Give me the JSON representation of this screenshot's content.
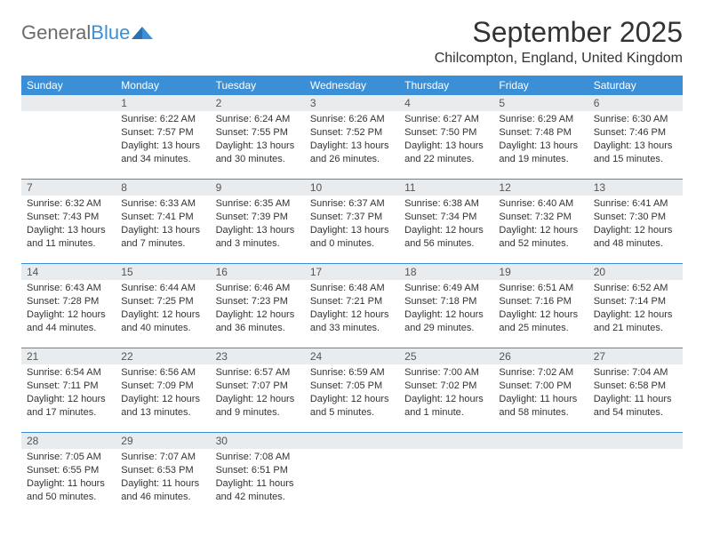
{
  "logo": {
    "gray": "General",
    "blue": "Blue"
  },
  "header": {
    "title": "September 2025",
    "location": "Chilcompton, England, United Kingdom"
  },
  "colors": {
    "brand_blue": "#3b8fd6",
    "header_gray": "#e8ecef",
    "text": "#333333",
    "logo_gray": "#6b6b6b"
  },
  "calendar": {
    "day_labels": [
      "Sunday",
      "Monday",
      "Tuesday",
      "Wednesday",
      "Thursday",
      "Friday",
      "Saturday"
    ],
    "weeks": [
      {
        "nums": [
          "",
          "1",
          "2",
          "3",
          "4",
          "5",
          "6"
        ],
        "cells": [
          null,
          {
            "sunrise": "Sunrise: 6:22 AM",
            "sunset": "Sunset: 7:57 PM",
            "daylight": "Daylight: 13 hours and 34 minutes."
          },
          {
            "sunrise": "Sunrise: 6:24 AM",
            "sunset": "Sunset: 7:55 PM",
            "daylight": "Daylight: 13 hours and 30 minutes."
          },
          {
            "sunrise": "Sunrise: 6:26 AM",
            "sunset": "Sunset: 7:52 PM",
            "daylight": "Daylight: 13 hours and 26 minutes."
          },
          {
            "sunrise": "Sunrise: 6:27 AM",
            "sunset": "Sunset: 7:50 PM",
            "daylight": "Daylight: 13 hours and 22 minutes."
          },
          {
            "sunrise": "Sunrise: 6:29 AM",
            "sunset": "Sunset: 7:48 PM",
            "daylight": "Daylight: 13 hours and 19 minutes."
          },
          {
            "sunrise": "Sunrise: 6:30 AM",
            "sunset": "Sunset: 7:46 PM",
            "daylight": "Daylight: 13 hours and 15 minutes."
          }
        ]
      },
      {
        "nums": [
          "7",
          "8",
          "9",
          "10",
          "11",
          "12",
          "13"
        ],
        "cells": [
          {
            "sunrise": "Sunrise: 6:32 AM",
            "sunset": "Sunset: 7:43 PM",
            "daylight": "Daylight: 13 hours and 11 minutes."
          },
          {
            "sunrise": "Sunrise: 6:33 AM",
            "sunset": "Sunset: 7:41 PM",
            "daylight": "Daylight: 13 hours and 7 minutes."
          },
          {
            "sunrise": "Sunrise: 6:35 AM",
            "sunset": "Sunset: 7:39 PM",
            "daylight": "Daylight: 13 hours and 3 minutes."
          },
          {
            "sunrise": "Sunrise: 6:37 AM",
            "sunset": "Sunset: 7:37 PM",
            "daylight": "Daylight: 13 hours and 0 minutes."
          },
          {
            "sunrise": "Sunrise: 6:38 AM",
            "sunset": "Sunset: 7:34 PM",
            "daylight": "Daylight: 12 hours and 56 minutes."
          },
          {
            "sunrise": "Sunrise: 6:40 AM",
            "sunset": "Sunset: 7:32 PM",
            "daylight": "Daylight: 12 hours and 52 minutes."
          },
          {
            "sunrise": "Sunrise: 6:41 AM",
            "sunset": "Sunset: 7:30 PM",
            "daylight": "Daylight: 12 hours and 48 minutes."
          }
        ]
      },
      {
        "nums": [
          "14",
          "15",
          "16",
          "17",
          "18",
          "19",
          "20"
        ],
        "cells": [
          {
            "sunrise": "Sunrise: 6:43 AM",
            "sunset": "Sunset: 7:28 PM",
            "daylight": "Daylight: 12 hours and 44 minutes."
          },
          {
            "sunrise": "Sunrise: 6:44 AM",
            "sunset": "Sunset: 7:25 PM",
            "daylight": "Daylight: 12 hours and 40 minutes."
          },
          {
            "sunrise": "Sunrise: 6:46 AM",
            "sunset": "Sunset: 7:23 PM",
            "daylight": "Daylight: 12 hours and 36 minutes."
          },
          {
            "sunrise": "Sunrise: 6:48 AM",
            "sunset": "Sunset: 7:21 PM",
            "daylight": "Daylight: 12 hours and 33 minutes."
          },
          {
            "sunrise": "Sunrise: 6:49 AM",
            "sunset": "Sunset: 7:18 PM",
            "daylight": "Daylight: 12 hours and 29 minutes."
          },
          {
            "sunrise": "Sunrise: 6:51 AM",
            "sunset": "Sunset: 7:16 PM",
            "daylight": "Daylight: 12 hours and 25 minutes."
          },
          {
            "sunrise": "Sunrise: 6:52 AM",
            "sunset": "Sunset: 7:14 PM",
            "daylight": "Daylight: 12 hours and 21 minutes."
          }
        ]
      },
      {
        "nums": [
          "21",
          "22",
          "23",
          "24",
          "25",
          "26",
          "27"
        ],
        "cells": [
          {
            "sunrise": "Sunrise: 6:54 AM",
            "sunset": "Sunset: 7:11 PM",
            "daylight": "Daylight: 12 hours and 17 minutes."
          },
          {
            "sunrise": "Sunrise: 6:56 AM",
            "sunset": "Sunset: 7:09 PM",
            "daylight": "Daylight: 12 hours and 13 minutes."
          },
          {
            "sunrise": "Sunrise: 6:57 AM",
            "sunset": "Sunset: 7:07 PM",
            "daylight": "Daylight: 12 hours and 9 minutes."
          },
          {
            "sunrise": "Sunrise: 6:59 AM",
            "sunset": "Sunset: 7:05 PM",
            "daylight": "Daylight: 12 hours and 5 minutes."
          },
          {
            "sunrise": "Sunrise: 7:00 AM",
            "sunset": "Sunset: 7:02 PM",
            "daylight": "Daylight: 12 hours and 1 minute."
          },
          {
            "sunrise": "Sunrise: 7:02 AM",
            "sunset": "Sunset: 7:00 PM",
            "daylight": "Daylight: 11 hours and 58 minutes."
          },
          {
            "sunrise": "Sunrise: 7:04 AM",
            "sunset": "Sunset: 6:58 PM",
            "daylight": "Daylight: 11 hours and 54 minutes."
          }
        ]
      },
      {
        "nums": [
          "28",
          "29",
          "30",
          "",
          "",
          "",
          ""
        ],
        "cells": [
          {
            "sunrise": "Sunrise: 7:05 AM",
            "sunset": "Sunset: 6:55 PM",
            "daylight": "Daylight: 11 hours and 50 minutes."
          },
          {
            "sunrise": "Sunrise: 7:07 AM",
            "sunset": "Sunset: 6:53 PM",
            "daylight": "Daylight: 11 hours and 46 minutes."
          },
          {
            "sunrise": "Sunrise: 7:08 AM",
            "sunset": "Sunset: 6:51 PM",
            "daylight": "Daylight: 11 hours and 42 minutes."
          },
          null,
          null,
          null,
          null
        ]
      }
    ]
  }
}
